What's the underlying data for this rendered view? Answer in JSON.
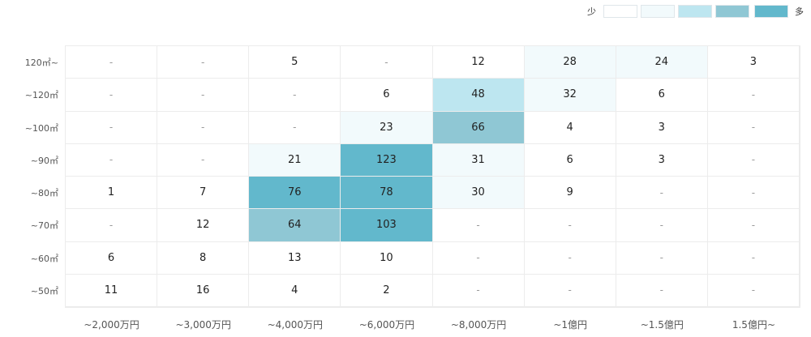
{
  "chart_data": {
    "type": "heatmap",
    "legend": {
      "low_label": "少",
      "high_label": "多",
      "colors": [
        "#ffffff",
        "#f2fafc",
        "#bde6f0",
        "#8fc7d4",
        "#62b8cc"
      ]
    },
    "rows": [
      "120㎡~",
      "~120㎡",
      "~100㎡",
      "~90㎡",
      "~80㎡",
      "~70㎡",
      "~60㎡",
      "~50㎡"
    ],
    "columns": [
      "~2,000万円",
      "~3,000万円",
      "~4,000万円",
      "~6,000万円",
      "~8,000万円",
      "~1億円",
      "~1.5億円",
      "1.5億円~"
    ],
    "values": [
      [
        null,
        null,
        5,
        null,
        12,
        28,
        24,
        3
      ],
      [
        null,
        null,
        null,
        6,
        48,
        32,
        6,
        null
      ],
      [
        null,
        null,
        null,
        23,
        66,
        4,
        3,
        null
      ],
      [
        null,
        null,
        21,
        123,
        31,
        6,
        3,
        null
      ],
      [
        1,
        7,
        76,
        78,
        30,
        9,
        null,
        null
      ],
      [
        null,
        12,
        64,
        103,
        null,
        null,
        null,
        null
      ],
      [
        6,
        8,
        13,
        10,
        null,
        null,
        null,
        null
      ],
      [
        11,
        16,
        4,
        2,
        null,
        null,
        null,
        null
      ]
    ],
    "empty_text": "-"
  }
}
